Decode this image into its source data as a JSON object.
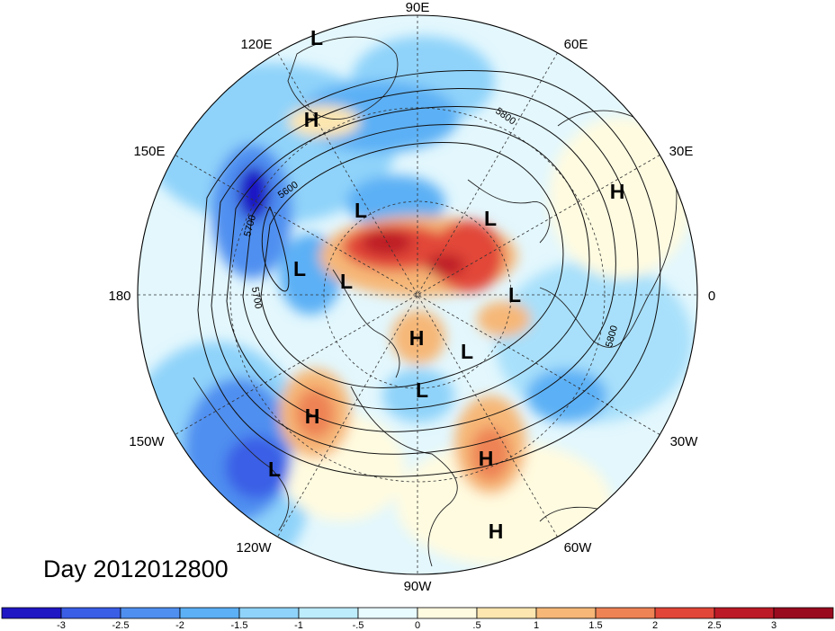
{
  "title": "Day 2012012800",
  "longitude_labels": {
    "lon_90e": "90E",
    "lon_60e": "60E",
    "lon_30e": "30E",
    "lon_0": "0",
    "lon_30w": "30W",
    "lon_60w": "60W",
    "lon_90w": "90W",
    "lon_120w": "120W",
    "lon_150w": "150W",
    "lon_180": "180",
    "lon_150e": "150E",
    "lon_120e": "120E"
  },
  "pressure_centers": {
    "c1": "L",
    "c2": "H",
    "c3": "L",
    "c4": "L",
    "c5": "L",
    "c6": "L",
    "c7": "L",
    "c8": "H",
    "c9": "L",
    "c10": "L",
    "c11": "H",
    "c12": "H",
    "c13": "L",
    "c14": "H",
    "c15": "H"
  },
  "contour_labels": {
    "k1": "5800",
    "k2": "5600",
    "k3": "5700",
    "k4": "5700",
    "k5": "5800"
  },
  "colorbar": {
    "ticks": [
      "-3",
      "-2.5",
      "-2",
      "-1.5",
      "-1",
      "-.5",
      "0",
      ".5",
      "1",
      "1.5",
      "2",
      "2.5",
      "3"
    ],
    "colors": [
      "#1f16c4",
      "#3a5ee6",
      "#4f8ff0",
      "#5cb0f5",
      "#8fd3fa",
      "#bdecfd",
      "#e8fbff",
      "#fffbe0",
      "#fde6b0",
      "#f6b777",
      "#ee8355",
      "#e24639",
      "#bd1a27",
      "#9a0a1f"
    ]
  }
}
